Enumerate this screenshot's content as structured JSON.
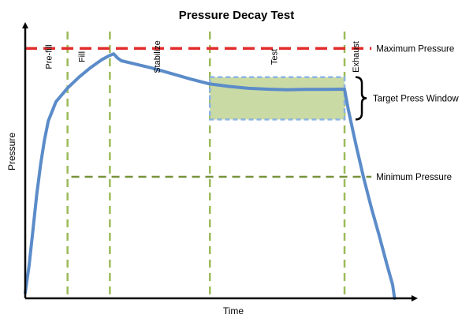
{
  "chart_data": {
    "type": "line",
    "title": "Pressure Decay Test",
    "xlabel": "Time",
    "ylabel": "Pressure",
    "xlim": [
      0,
      100
    ],
    "ylim": [
      0,
      100
    ],
    "grid": false,
    "phases": [
      {
        "name": "Pre-fill",
        "start": 0,
        "end": 11
      },
      {
        "name": "Fill",
        "start": 11,
        "end": 22
      },
      {
        "name": "Stabilize",
        "start": 22,
        "end": 48
      },
      {
        "name": "Test",
        "start": 48,
        "end": 83
      },
      {
        "name": "Exhaust",
        "start": 83,
        "end": 96
      }
    ],
    "phase_boundaries": [
      11,
      22,
      48,
      83
    ],
    "series": [
      {
        "name": "Pressure",
        "color": "#5b8cc9",
        "points": [
          [
            0,
            2
          ],
          [
            1,
            12
          ],
          [
            2,
            25
          ],
          [
            3,
            38
          ],
          [
            4,
            49
          ],
          [
            5,
            58
          ],
          [
            6,
            65
          ],
          [
            8,
            72
          ],
          [
            11,
            77
          ],
          [
            14,
            81
          ],
          [
            17,
            84.5
          ],
          [
            20,
            87.5
          ],
          [
            22,
            89
          ],
          [
            23,
            89.5
          ],
          [
            24,
            88
          ],
          [
            25,
            87
          ],
          [
            28,
            86
          ],
          [
            33,
            84.3
          ],
          [
            38,
            82.3
          ],
          [
            43,
            80.3
          ],
          [
            48,
            78.5
          ],
          [
            53,
            77.6
          ],
          [
            58,
            76.9
          ],
          [
            63,
            76.6
          ],
          [
            68,
            76.4
          ],
          [
            73,
            76.5
          ],
          [
            78,
            76.5
          ],
          [
            83,
            76.6
          ],
          [
            84,
            69
          ],
          [
            86,
            56
          ],
          [
            88,
            44
          ],
          [
            90,
            33
          ],
          [
            92,
            23
          ],
          [
            94,
            12.5
          ],
          [
            95.5,
            5
          ],
          [
            96,
            0
          ]
        ]
      }
    ],
    "reference_lines": [
      {
        "name": "Maximum Pressure",
        "value": 91.5,
        "x_start": 0,
        "x_end": 90,
        "color": "#e32b2b"
      },
      {
        "name": "Minimum Pressure",
        "value": 44.5,
        "x_start": 12,
        "x_end": 90,
        "color": "#77933c"
      }
    ],
    "target_window": {
      "name": "Target Press Window",
      "x_start": 48,
      "x_end": 83,
      "y_low": 65.5,
      "y_high": 81,
      "fill": "#c3d69b",
      "border": "#8eb4e3"
    },
    "guide_color": "#9bbb59"
  }
}
